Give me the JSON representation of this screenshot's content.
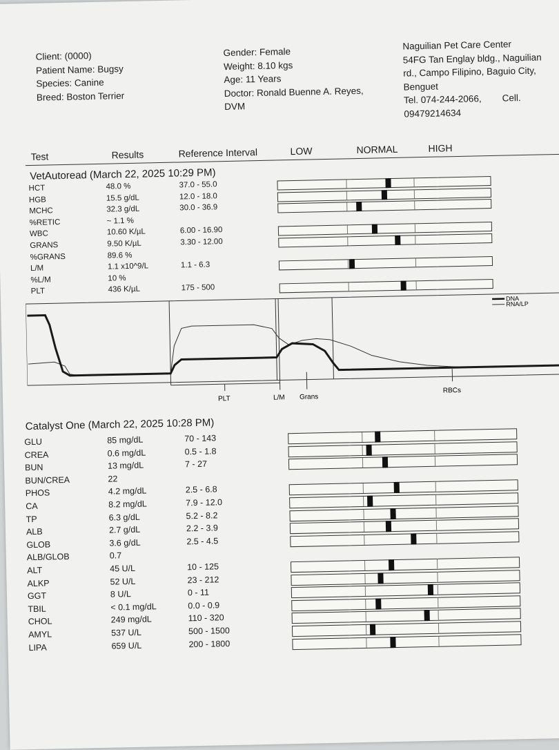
{
  "header": {
    "client": "Client:  (0000)",
    "patient_name": "Patient Name: Bugsy",
    "species": "Species: Canine",
    "breed": "Breed: Boston Terrier",
    "gender": "Gender: Female",
    "weight": "Weight: 8.10 kgs",
    "age": "Age: 11 Years",
    "doctor_line1": "Doctor: Ronald Buenne A. Reyes,",
    "doctor_line2": "DVM",
    "clinic_name": "Naguilian Pet Care Center",
    "address_line1": "54FG Tan Englay bldg., Naguilian",
    "address_line2": "rd., Campo Filipino, Baguio City,",
    "address_line3": "Benguet",
    "tel": "Tel. 074-244-2066,",
    "cell_label": "Cell.",
    "cell_number": "09479214634"
  },
  "columns": {
    "test": "Test",
    "results": "Results",
    "reference": "Reference Interval",
    "low": "LOW",
    "normal": "NORMAL",
    "high": "HIGH"
  },
  "vetautoread": {
    "title": "VetAutoread (March 22, 2025 10:29 PM)",
    "rows": [
      {
        "test": "HCT",
        "result": "48.0 %",
        "ref": "37.0 - 55.0"
      },
      {
        "test": "HGB",
        "result": "15.5 g/dL",
        "ref": "12.0 - 18.0"
      },
      {
        "test": "MCHC",
        "result": "32.3 g/dL",
        "ref": "30.0 - 36.9"
      },
      {
        "test": "%RETIC",
        "result": "~ 1.1 %",
        "ref": ""
      },
      {
        "test": "WBC",
        "result": "10.60 K/µL",
        "ref": "6.00 - 16.90"
      },
      {
        "test": "GRANS",
        "result": "9.50 K/µL",
        "ref": "3.30 - 12.00"
      },
      {
        "test": "%GRANS",
        "result": "89.6 %",
        "ref": ""
      },
      {
        "test": "L/M",
        "result": "1.1 x10^9/L",
        "ref": "1.1 - 6.3"
      },
      {
        "test": "%L/M",
        "result": "10 %",
        "ref": ""
      },
      {
        "test": "PLT",
        "result": "436 K/µL",
        "ref": "175 - 500"
      }
    ],
    "markers": {
      "HCT": 0.52,
      "HGB": 0.5,
      "MCHC": 0.38,
      "WBC": 0.45,
      "GRANS": 0.56,
      "L/M": 0.34,
      "PLT": 0.58
    }
  },
  "histogram": {
    "legend_dna": "DNA",
    "legend_rna": "RNA/LP",
    "label_plt": "PLT",
    "label_lm": "L/M",
    "label_grans": "Grans",
    "label_rbcs": "RBCs"
  },
  "catalyst": {
    "title": "Catalyst One (March 22, 2025 10:28 PM)",
    "rows": [
      {
        "test": "GLU",
        "result": "85 mg/dL",
        "ref": "70 - 143"
      },
      {
        "test": "CREA",
        "result": "0.6 mg/dL",
        "ref": "0.5 - 1.8"
      },
      {
        "test": "BUN",
        "result": "13 mg/dL",
        "ref": "7 - 27"
      },
      {
        "test": "BUN/CREA",
        "result": "22",
        "ref": ""
      },
      {
        "test": "PHOS",
        "result": "4.2 mg/dL",
        "ref": "2.5 - 6.8"
      },
      {
        "test": "CA",
        "result": "8.2 mg/dL",
        "ref": "7.9 - 12.0"
      },
      {
        "test": "TP",
        "result": "6.3 g/dL",
        "ref": "5.2 - 8.2"
      },
      {
        "test": "ALB",
        "result": "2.7 g/dL",
        "ref": "2.2 - 3.9"
      },
      {
        "test": "GLOB",
        "result": "3.6 g/dL",
        "ref": "2.5 - 4.5"
      },
      {
        "test": "ALB/GLOB",
        "result": "0.7",
        "ref": ""
      },
      {
        "test": "ALT",
        "result": "45 U/L",
        "ref": "10 - 125"
      },
      {
        "test": "ALKP",
        "result": "52 U/L",
        "ref": "23 - 212"
      },
      {
        "test": "GGT",
        "result": "8 U/L",
        "ref": "0 - 11"
      },
      {
        "test": "TBIL",
        "result": "< 0.1 mg/dL",
        "ref": "0.0 - 0.9"
      },
      {
        "test": "CHOL",
        "result": "249 mg/dL",
        "ref": "110 - 320"
      },
      {
        "test": "AMYL",
        "result": "537 U/L",
        "ref": "500 - 1500"
      },
      {
        "test": "LIPA",
        "result": "659 U/L",
        "ref": "200 - 1800"
      }
    ],
    "markers": {
      "GLU": 0.39,
      "CREA": 0.35,
      "BUN": 0.42,
      "PHOS": 0.47,
      "CA": 0.35,
      "TP": 0.45,
      "ALB": 0.43,
      "GLOB": 0.54,
      "ALT": 0.44,
      "ALKP": 0.39,
      "GGT": 0.61,
      "TBIL": 0.38,
      "CHOL": 0.59,
      "AMYL": 0.35,
      "LIPA": 0.44
    }
  }
}
